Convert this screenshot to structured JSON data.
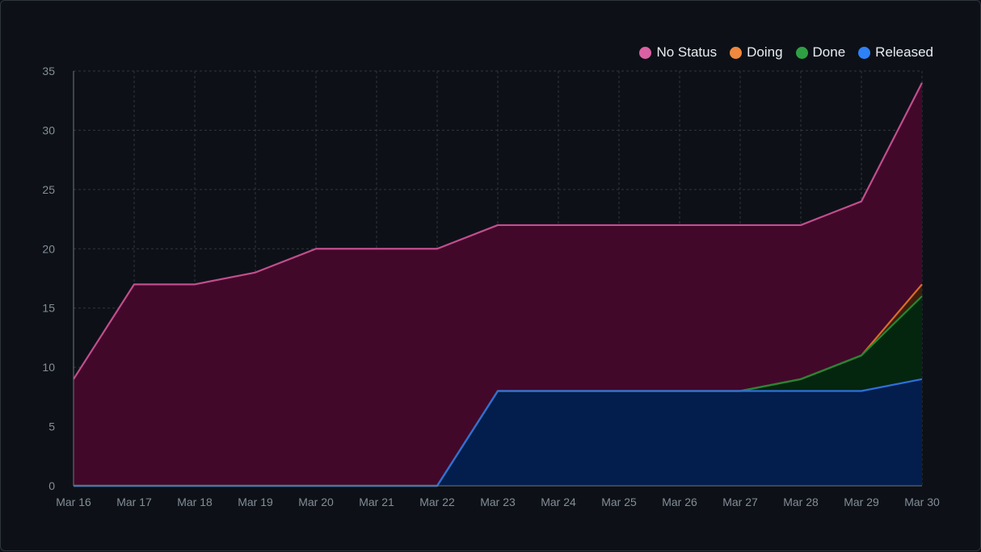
{
  "chart_data": {
    "type": "area",
    "x": [
      "Mar 16",
      "Mar 17",
      "Mar 18",
      "Mar 19",
      "Mar 20",
      "Mar 21",
      "Mar 22",
      "Mar 23",
      "Mar 24",
      "Mar 25",
      "Mar 26",
      "Mar 27",
      "Mar 28",
      "Mar 29",
      "Mar 30"
    ],
    "ylim": [
      0,
      35
    ],
    "yticks": [
      0,
      5,
      10,
      15,
      20,
      25,
      30,
      35
    ],
    "grid": true,
    "stacked": true,
    "legend_position": "top-right",
    "series": [
      {
        "name": "Released",
        "color": "#2f6fdb",
        "fill": "#031e4c",
        "values": [
          0,
          0,
          0,
          0,
          0,
          0,
          0,
          8,
          8,
          8,
          8,
          8,
          8,
          8,
          9
        ]
      },
      {
        "name": "Done",
        "color": "#238636",
        "fill": "#04260f",
        "values": [
          0,
          0,
          0,
          0,
          0,
          0,
          0,
          0,
          0,
          0,
          0,
          0,
          1,
          3,
          7
        ]
      },
      {
        "name": "Doing",
        "color": "#db6d28",
        "fill": "#3d1e0a",
        "values": [
          0,
          0,
          0,
          0,
          0,
          0,
          0,
          0,
          0,
          0,
          0,
          0,
          0,
          0,
          1
        ]
      },
      {
        "name": "No Status",
        "color": "#c24e8e",
        "fill": "#42082a",
        "values": [
          9,
          17,
          17,
          18,
          20,
          20,
          20,
          14,
          14,
          14,
          14,
          14,
          13,
          13,
          17
        ]
      }
    ],
    "legend_order": [
      "No Status",
      "Doing",
      "Done",
      "Released"
    ]
  }
}
